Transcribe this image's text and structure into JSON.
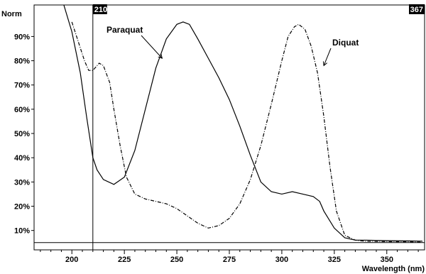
{
  "chart_data": {
    "type": "line",
    "title": "",
    "xlabel": "Wavelength (nm)",
    "ylabel": "Norm",
    "xlim": [
      182,
      368
    ],
    "ylim": [
      2,
      103
    ],
    "x_ticks": [
      200,
      225,
      250,
      275,
      300,
      325,
      350
    ],
    "y_ticks": [
      10,
      20,
      30,
      40,
      50,
      60,
      70,
      80,
      90
    ],
    "y_tick_labels": [
      "10%",
      "20%",
      "30%",
      "40%",
      "50%",
      "60%",
      "70%",
      "80%",
      "90%"
    ],
    "x_tick_labels": [
      "200",
      "225",
      "250",
      "275",
      "300",
      "325",
      "350"
    ],
    "grid": false,
    "cursor_x": 210,
    "cursor_label": "210",
    "range_end_label": "367",
    "baseline_y": 5,
    "series": [
      {
        "name": "Paraquat",
        "style": "solid",
        "x": [
          192,
          200,
          204,
          207,
          210,
          212,
          215,
          220,
          225,
          230,
          235,
          240,
          245,
          250,
          253,
          256,
          260,
          265,
          270,
          275,
          280,
          285,
          290,
          295,
          300,
          305,
          310,
          315,
          318,
          320,
          325,
          330,
          335,
          340,
          350,
          360,
          367
        ],
        "y": [
          115,
          92,
          75,
          57,
          40,
          35,
          31,
          29,
          32,
          43,
          60,
          77,
          89,
          95,
          96,
          95,
          89,
          81,
          73,
          64,
          53,
          41,
          30,
          26,
          25,
          26,
          25,
          24,
          22,
          18,
          11,
          7,
          6,
          6,
          5.8,
          5.7,
          5.6
        ]
      },
      {
        "name": "Diquat",
        "style": "dashdot",
        "x": [
          200,
          203,
          206,
          208,
          210,
          213,
          215,
          218,
          220,
          223,
          226,
          230,
          235,
          240,
          245,
          250,
          255,
          260,
          265,
          270,
          275,
          280,
          285,
          290,
          295,
          300,
          303,
          306,
          308,
          311,
          314,
          317,
          320,
          323,
          326,
          330,
          335,
          340,
          350,
          360,
          367
        ],
        "y": [
          96,
          88,
          80,
          76,
          76,
          79,
          78,
          71,
          60,
          45,
          32,
          25,
          23,
          22,
          21,
          19,
          16,
          13,
          11,
          12,
          15,
          21,
          31,
          45,
          62,
          80,
          90,
          94,
          95,
          93,
          86,
          75,
          57,
          36,
          18,
          8,
          6,
          5.5,
          5.4,
          5.3,
          5.2
        ]
      }
    ],
    "annotations": [
      {
        "text": "Paraquat",
        "target_x": 243,
        "target_y": 81
      },
      {
        "text": "Diquat",
        "target_x": 320,
        "target_y": 78
      }
    ]
  }
}
